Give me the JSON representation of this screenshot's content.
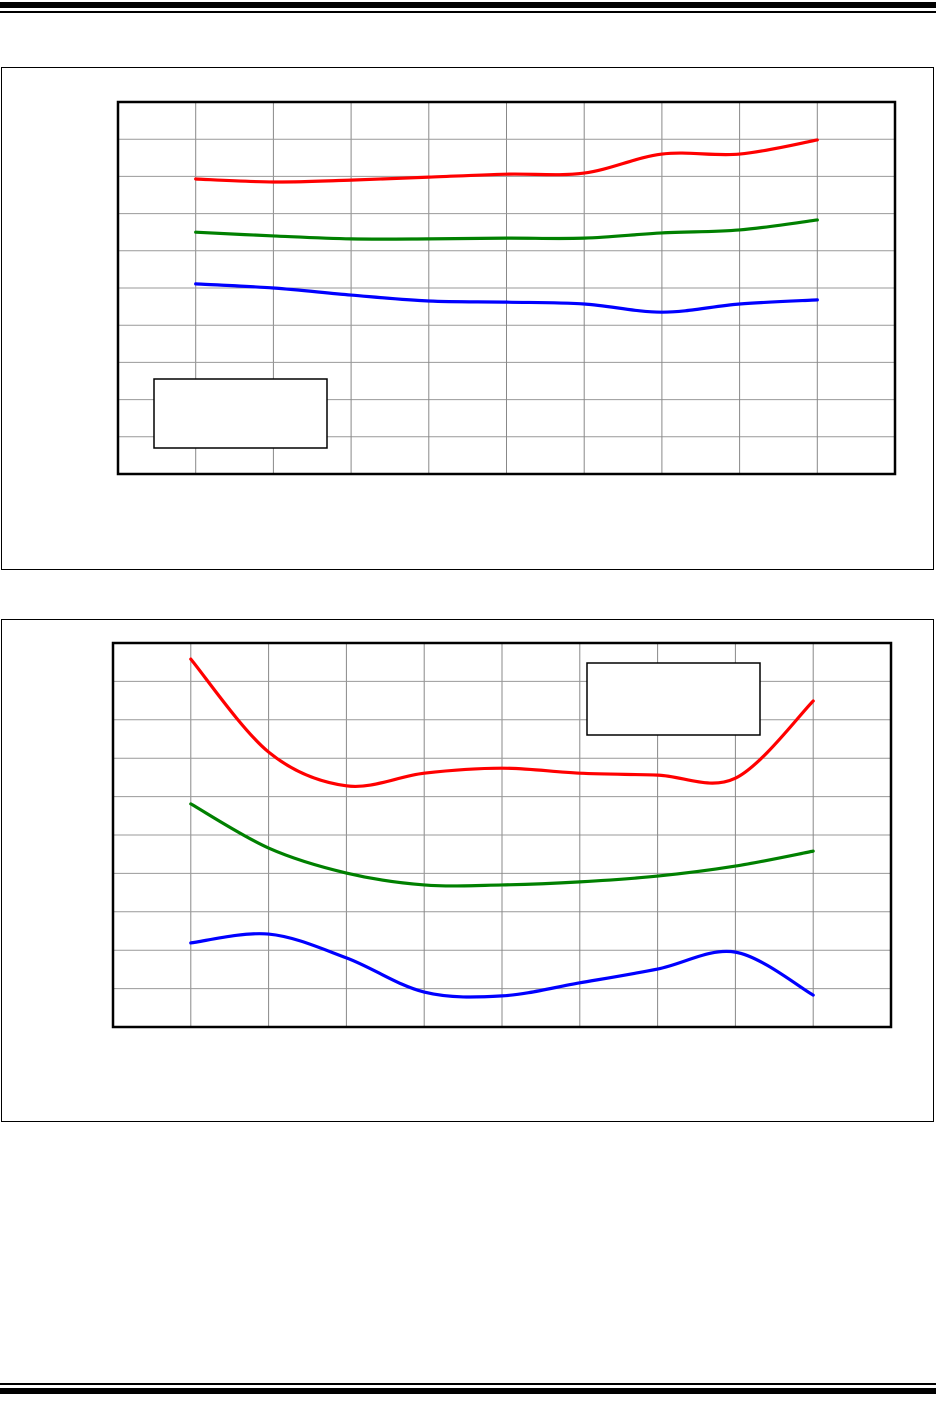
{
  "chart_data": [
    {
      "type": "line",
      "title": "",
      "xlabel": "",
      "ylabel": "",
      "xlim": [
        0,
        10
      ],
      "ylim": [
        0,
        10
      ],
      "grid": true,
      "legend": "bottom-left",
      "x": [
        1,
        2,
        3,
        4,
        5,
        6,
        7,
        8,
        9
      ],
      "series": [
        {
          "color": "#ff0000",
          "values": [
            7.93,
            7.85,
            7.9,
            7.98,
            8.06,
            8.09,
            8.6,
            8.6,
            8.98
          ]
        },
        {
          "color": "#008000",
          "values": [
            6.5,
            6.4,
            6.32,
            6.32,
            6.34,
            6.34,
            6.48,
            6.56,
            6.83
          ]
        },
        {
          "color": "#0000ff",
          "values": [
            5.11,
            5.0,
            4.81,
            4.65,
            4.62,
            4.57,
            4.35,
            4.57,
            4.68
          ]
        }
      ]
    },
    {
      "type": "line",
      "title": "",
      "xlabel": "",
      "ylabel": "",
      "xlim": [
        0,
        10
      ],
      "ylim": [
        0,
        10
      ],
      "grid": true,
      "legend": "top-right",
      "x": [
        1,
        2,
        3,
        4,
        5,
        6,
        7,
        8,
        9
      ],
      "series": [
        {
          "color": "#ff0000",
          "values": [
            9.58,
            7.16,
            6.28,
            6.61,
            6.74,
            6.61,
            6.56,
            6.48,
            8.49
          ]
        },
        {
          "color": "#008000",
          "values": [
            5.81,
            4.66,
            4.01,
            3.7,
            3.7,
            3.78,
            3.93,
            4.19,
            4.58
          ]
        },
        {
          "color": "#0000ff",
          "values": [
            2.19,
            2.42,
            1.8,
            0.91,
            0.81,
            1.15,
            1.51,
            1.95,
            0.83
          ]
        }
      ]
    }
  ]
}
